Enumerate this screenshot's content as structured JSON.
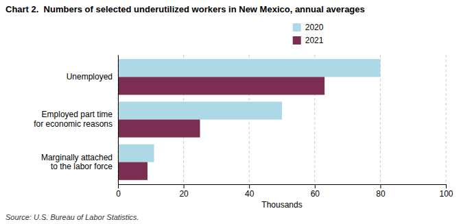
{
  "chart_data": {
    "type": "bar",
    "orientation": "horizontal",
    "title": "Chart 2.  Numbers of selected underutilized workers in New Mexico, annual averages",
    "categories": [
      "Marginally attached\nto the labor force",
      "Employed part time\nfor economic reasons",
      "Unemployed"
    ],
    "series": [
      {
        "name": "2020",
        "color": "#add8e6",
        "values": [
          11,
          50,
          80
        ]
      },
      {
        "name": "2021",
        "color": "#7b2d52",
        "values": [
          9,
          25,
          63
        ]
      }
    ],
    "xlabel": "Thousands",
    "xlim": [
      0,
      100
    ],
    "xticks": [
      0,
      20,
      40,
      60,
      80,
      100
    ],
    "grid": true,
    "legend": "top",
    "source": "Source: U.S. Bureau of Labor Statistics."
  }
}
